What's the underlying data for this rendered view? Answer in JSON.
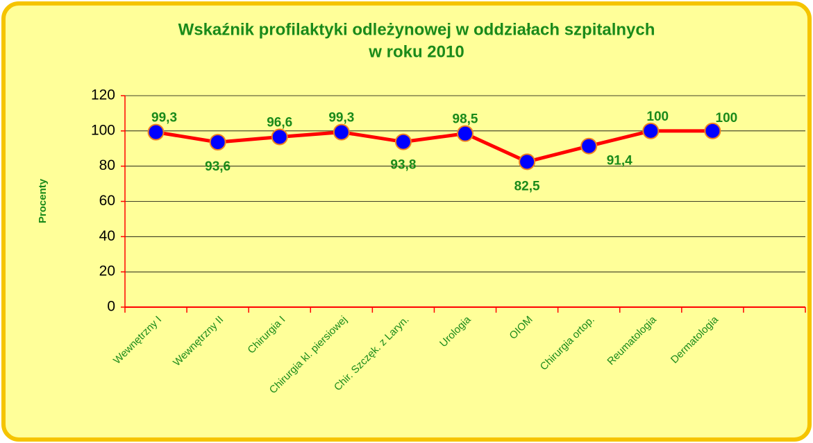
{
  "chart_data": {
    "type": "line",
    "title": "Wskaźnik profilaktyki odleżynowej w oddziałach szpitalnych",
    "subtitle": "w roku 2010",
    "y_label": "Procenty",
    "categories": [
      "Wewnętrzny  I",
      "Wewnętrzny II",
      "Chirurgia I",
      "Chirurgia  kl. piersiowej",
      "Chir. Szczęk.  z Laryn.",
      "Urologia",
      "OIOM",
      "Chirurgia ortop.",
      "Reumatologia",
      "Dermatologia",
      null
    ],
    "series": [
      {
        "name": "Procenty",
        "color": "#ff0000",
        "marker_color": "#0000ff",
        "values": [
          99.3,
          93.6,
          96.6,
          99.3,
          93.8,
          98.5,
          82.5,
          91.4,
          100,
          100,
          null
        ],
        "value_labels": [
          "99,3",
          "93,6",
          "96,6",
          "99,3",
          "93,8",
          "98,5",
          "82,5",
          "91,4",
          "100",
          "100",
          null
        ]
      }
    ],
    "ylim": [
      0,
      120
    ],
    "yticks": [
      0,
      20,
      40,
      60,
      80,
      100,
      120
    ],
    "grid": true
  }
}
